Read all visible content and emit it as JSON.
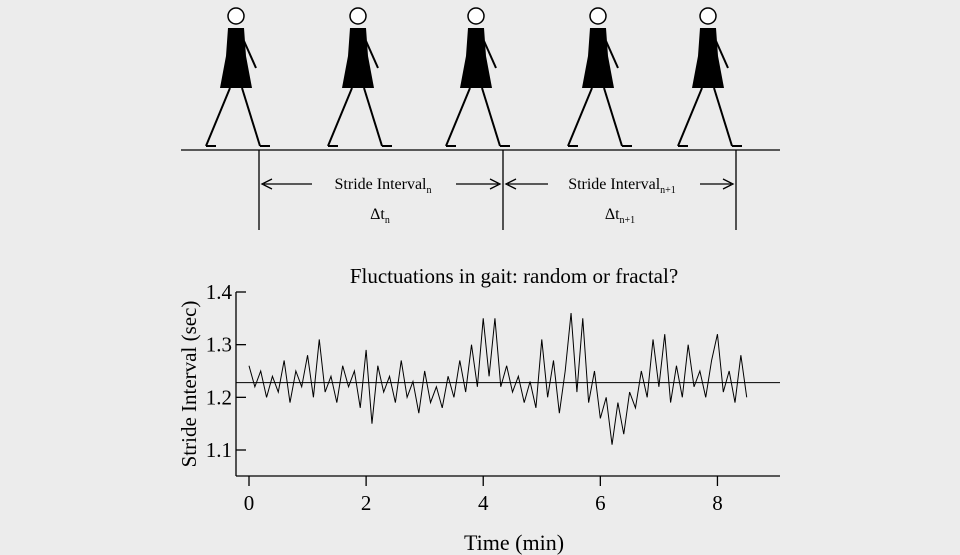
{
  "diagram": {
    "intervals": [
      {
        "label": "Stride Interval",
        "subscript": "n",
        "delta": "Δt",
        "delta_subscript": "n"
      },
      {
        "label": "Stride Interval",
        "subscript": "n+1",
        "delta": "Δt",
        "delta_subscript": "n+1"
      }
    ]
  },
  "chart_data": {
    "type": "line",
    "title": "Fluctuations in gait: random or fractal?",
    "x_label": "Time (min)",
    "y_label": "Stride Interval (sec)",
    "x": [
      0,
      0.1,
      0.2,
      0.3,
      0.4,
      0.5,
      0.6,
      0.7,
      0.8,
      0.9,
      1,
      1.1,
      1.2,
      1.3,
      1.4,
      1.5,
      1.6,
      1.7,
      1.8,
      1.9,
      2,
      2.1,
      2.2,
      2.3,
      2.4,
      2.5,
      2.6,
      2.7,
      2.8,
      2.9,
      3,
      3.1,
      3.2,
      3.3,
      3.4,
      3.5,
      3.6,
      3.7,
      3.8,
      3.9,
      4,
      4.1,
      4.2,
      4.3,
      4.4,
      4.5,
      4.6,
      4.7,
      4.8,
      4.9,
      5,
      5.1,
      5.2,
      5.3,
      5.4,
      5.5,
      5.6,
      5.7,
      5.8,
      5.9,
      6,
      6.1,
      6.2,
      6.3,
      6.4,
      6.5,
      6.6,
      6.7,
      6.8,
      6.9,
      7,
      7.1,
      7.2,
      7.3,
      7.4,
      7.5,
      7.6,
      7.7,
      7.8,
      7.9,
      8,
      8.1,
      8.2,
      8.3,
      8.4,
      8.5
    ],
    "series": [
      {
        "color": "#000000",
        "values": [
          1.26,
          1.22,
          1.25,
          1.2,
          1.24,
          1.21,
          1.27,
          1.19,
          1.25,
          1.22,
          1.28,
          1.2,
          1.31,
          1.21,
          1.24,
          1.19,
          1.26,
          1.22,
          1.25,
          1.18,
          1.29,
          1.15,
          1.26,
          1.21,
          1.24,
          1.19,
          1.27,
          1.2,
          1.23,
          1.17,
          1.25,
          1.19,
          1.22,
          1.18,
          1.24,
          1.2,
          1.27,
          1.21,
          1.3,
          1.22,
          1.35,
          1.24,
          1.35,
          1.22,
          1.26,
          1.21,
          1.24,
          1.19,
          1.23,
          1.18,
          1.31,
          1.2,
          1.27,
          1.17,
          1.25,
          1.36,
          1.21,
          1.35,
          1.19,
          1.25,
          1.16,
          1.2,
          1.11,
          1.19,
          1.13,
          1.21,
          1.18,
          1.25,
          1.2,
          1.31,
          1.22,
          1.32,
          1.19,
          1.26,
          1.2,
          1.3,
          1.22,
          1.25,
          1.2,
          1.27,
          1.32,
          1.21,
          1.25,
          1.19,
          1.28,
          1.2
        ]
      }
    ],
    "mean_line": 1.228,
    "xlim": [
      0,
      9
    ],
    "ylim": [
      1.05,
      1.4
    ],
    "xticks": [
      0,
      2,
      4,
      6,
      8
    ],
    "yticks": [
      1.1,
      1.2,
      1.3,
      1.4
    ]
  }
}
